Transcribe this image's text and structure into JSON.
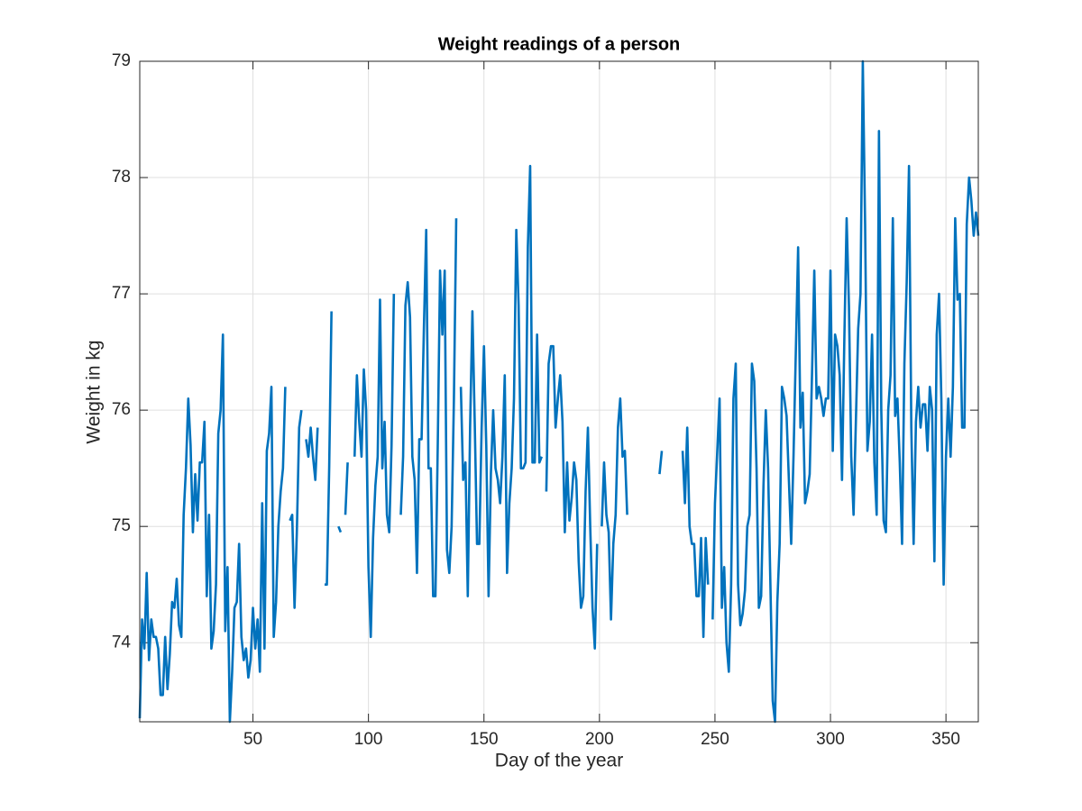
{
  "chart_data": {
    "type": "line",
    "title": "Weight readings of a person",
    "x_label": "Day of the year",
    "y_label": "Weight in kg",
    "x": [
      1,
      2,
      3,
      4,
      5,
      6,
      7,
      8,
      9,
      10,
      11,
      12,
      13,
      14,
      15,
      16,
      17,
      18,
      19,
      20,
      21,
      22,
      23,
      24,
      25,
      26,
      27,
      28,
      29,
      30,
      31,
      32,
      33,
      34,
      35,
      36,
      37,
      38,
      39,
      40,
      41,
      42,
      43,
      44,
      45,
      46,
      47,
      48,
      49,
      50,
      51,
      52,
      53,
      54,
      55,
      56,
      57,
      58,
      59,
      60,
      61,
      62,
      63,
      64,
      65,
      66,
      67,
      68,
      69,
      70,
      71,
      72,
      73,
      74,
      75,
      76,
      77,
      78,
      79,
      80,
      81,
      82,
      83,
      84,
      85,
      86,
      87,
      88,
      89,
      90,
      91,
      92,
      93,
      94,
      95,
      96,
      97,
      98,
      99,
      100,
      101,
      102,
      103,
      104,
      105,
      106,
      107,
      108,
      109,
      110,
      111,
      112,
      113,
      114,
      115,
      116,
      117,
      118,
      119,
      120,
      121,
      122,
      123,
      124,
      125,
      126,
      127,
      128,
      129,
      130,
      131,
      132,
      133,
      134,
      135,
      136,
      137,
      138,
      139,
      140,
      141,
      142,
      143,
      144,
      145,
      146,
      147,
      148,
      149,
      150,
      151,
      152,
      153,
      154,
      155,
      156,
      157,
      158,
      159,
      160,
      161,
      162,
      163,
      164,
      165,
      166,
      167,
      168,
      169,
      170,
      171,
      172,
      173,
      174,
      175,
      176,
      177,
      178,
      179,
      180,
      181,
      182,
      183,
      184,
      185,
      186,
      187,
      188,
      189,
      190,
      191,
      192,
      193,
      194,
      195,
      196,
      197,
      198,
      199,
      200,
      201,
      202,
      203,
      204,
      205,
      206,
      207,
      208,
      209,
      210,
      211,
      212,
      213,
      214,
      215,
      216,
      217,
      218,
      219,
      220,
      221,
      222,
      223,
      224,
      225,
      226,
      227,
      228,
      229,
      230,
      231,
      232,
      233,
      234,
      235,
      236,
      237,
      238,
      239,
      240,
      241,
      242,
      243,
      244,
      245,
      246,
      247,
      248,
      249,
      250,
      251,
      252,
      253,
      254,
      255,
      256,
      257,
      258,
      259,
      260,
      261,
      262,
      263,
      264,
      265,
      266,
      267,
      268,
      269,
      270,
      271,
      272,
      273,
      274,
      275,
      276,
      277,
      278,
      279,
      280,
      281,
      282,
      283,
      284,
      285,
      286,
      287,
      288,
      289,
      290,
      291,
      292,
      293,
      294,
      295,
      296,
      297,
      298,
      299,
      300,
      301,
      302,
      303,
      304,
      305,
      306,
      307,
      308,
      309,
      310,
      311,
      312,
      313,
      314,
      315,
      316,
      317,
      318,
      319,
      320,
      321,
      322,
      323,
      324,
      325,
      326,
      327,
      328,
      329,
      330,
      331,
      332,
      333,
      334,
      335,
      336,
      337,
      338,
      339,
      340,
      341,
      342,
      343,
      344,
      345,
      346,
      347,
      348,
      349,
      350,
      351,
      352,
      353,
      354,
      355,
      356,
      357,
      358,
      359,
      360,
      361,
      362,
      363,
      364
    ],
    "series": [
      {
        "name": "Weight",
        "color": "#0072bd",
        "values": [
          73.35,
          74.2,
          73.95,
          74.6,
          73.85,
          74.2,
          74.05,
          74.05,
          73.95,
          73.55,
          73.55,
          74.05,
          73.6,
          73.9,
          74.35,
          74.3,
          74.55,
          74.15,
          74.05,
          75.1,
          75.5,
          76.1,
          75.7,
          74.95,
          75.45,
          75.05,
          75.55,
          75.55,
          75.9,
          74.4,
          75.1,
          73.95,
          74.1,
          74.5,
          75.8,
          76.0,
          76.65,
          74.1,
          74.65,
          73.32,
          73.75,
          74.3,
          74.35,
          74.85,
          74.05,
          73.85,
          73.95,
          73.7,
          73.85,
          74.3,
          73.95,
          74.2,
          73.75,
          75.2,
          73.95,
          75.65,
          75.8,
          76.2,
          74.05,
          74.35,
          75.0,
          75.3,
          75.5,
          76.2,
          null,
          75.05,
          75.1,
          74.3,
          74.95,
          75.85,
          76.0,
          null,
          75.75,
          75.6,
          75.85,
          75.6,
          75.4,
          75.85,
          null,
          null,
          74.5,
          74.5,
          75.5,
          76.85,
          null,
          null,
          75.0,
          74.95,
          null,
          75.1,
          75.55,
          null,
          null,
          75.6,
          76.3,
          75.9,
          75.6,
          76.35,
          76.0,
          74.65,
          74.05,
          74.9,
          75.35,
          75.6,
          76.95,
          75.5,
          75.9,
          75.1,
          74.95,
          75.7,
          77.0,
          null,
          null,
          75.1,
          75.6,
          76.9,
          77.1,
          76.8,
          75.6,
          75.4,
          74.6,
          75.75,
          75.75,
          76.7,
          77.55,
          75.5,
          75.5,
          74.4,
          74.4,
          75.7,
          77.2,
          76.65,
          77.2,
          74.8,
          74.6,
          75.0,
          76.1,
          77.65,
          null,
          76.2,
          75.4,
          75.55,
          74.4,
          75.85,
          76.85,
          75.9,
          74.85,
          74.85,
          75.85,
          76.55,
          75.7,
          74.4,
          75.45,
          76.0,
          75.5,
          75.4,
          75.2,
          75.6,
          76.3,
          74.6,
          75.2,
          75.5,
          76.1,
          77.55,
          76.9,
          75.5,
          75.5,
          75.55,
          77.4,
          78.1,
          75.55,
          75.55,
          76.65,
          75.55,
          75.6,
          null,
          75.3,
          76.4,
          76.55,
          76.55,
          75.85,
          76.1,
          76.3,
          75.9,
          74.95,
          75.55,
          75.05,
          75.25,
          75.55,
          75.4,
          74.7,
          74.3,
          74.4,
          75.3,
          75.85,
          75.0,
          74.3,
          73.95,
          74.85,
          null,
          75.0,
          75.55,
          75.1,
          74.95,
          74.2,
          74.85,
          75.1,
          75.85,
          76.1,
          75.6,
          75.65,
          75.1,
          null,
          null,
          null,
          null,
          null,
          null,
          null,
          null,
          null,
          null,
          null,
          null,
          null,
          75.45,
          75.65,
          null,
          null,
          null,
          null,
          null,
          null,
          null,
          null,
          75.65,
          75.2,
          75.85,
          75.0,
          74.85,
          74.85,
          74.4,
          74.4,
          74.9,
          74.05,
          74.9,
          74.5,
          null,
          74.2,
          75.2,
          75.65,
          76.1,
          74.3,
          74.65,
          74.0,
          73.75,
          74.5,
          76.1,
          76.4,
          74.5,
          74.15,
          74.25,
          74.45,
          75.0,
          75.1,
          76.4,
          76.25,
          75.5,
          74.3,
          74.4,
          75.35,
          76.0,
          75.5,
          74.5,
          73.5,
          73.32,
          74.35,
          74.85,
          76.2,
          76.1,
          75.95,
          75.4,
          74.85,
          75.6,
          76.5,
          77.4,
          75.85,
          76.15,
          75.2,
          75.3,
          75.45,
          76.3,
          77.2,
          76.1,
          76.2,
          76.1,
          75.95,
          76.1,
          76.1,
          77.2,
          75.65,
          76.65,
          76.55,
          76.3,
          75.4,
          76.6,
          77.65,
          76.9,
          75.6,
          75.1,
          75.9,
          76.7,
          77.0,
          79.0,
          77.6,
          75.65,
          75.9,
          76.65,
          75.55,
          75.1,
          78.4,
          76.0,
          75.05,
          74.95,
          76.0,
          76.3,
          77.65,
          75.95,
          76.1,
          75.55,
          74.85,
          76.4,
          77.1,
          78.1,
          75.85,
          74.85,
          75.9,
          76.2,
          75.85,
          76.05,
          76.05,
          75.65,
          76.2,
          76.0,
          74.7,
          76.65,
          77.0,
          76.1,
          74.5,
          75.6,
          76.1,
          75.6,
          76.2,
          77.65,
          76.95,
          77.0,
          75.85,
          75.85,
          77.6,
          78.0,
          77.8,
          77.5,
          77.7,
          77.5
        ]
      }
    ],
    "xlim": [
      1,
      364
    ],
    "xticks": [
      50,
      100,
      150,
      200,
      250,
      300,
      350
    ],
    "ylim": [
      73.32,
      79.0
    ],
    "yticks": [
      74,
      75,
      76,
      77,
      78,
      79
    ],
    "grid": true
  }
}
